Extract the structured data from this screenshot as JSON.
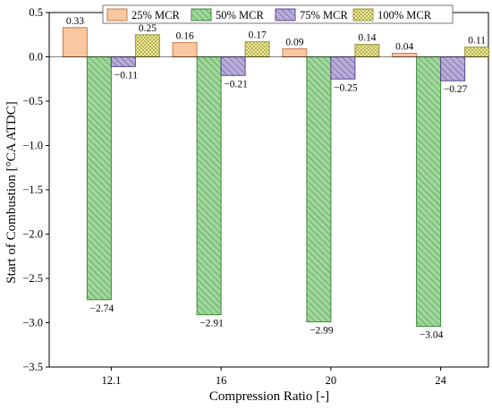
{
  "chart_data": {
    "type": "bar",
    "xlabel": "Compression Ratio [-]",
    "ylabel": "Start of Combustion [°CA ATDC]",
    "ylim": [
      -3.5,
      0.5
    ],
    "yticks": [
      "0.5",
      "0.0",
      "−0.5",
      "−1.0",
      "−1.5",
      "−2.0",
      "−2.5",
      "−3.0",
      "−3.5"
    ],
    "categories": [
      "12.1",
      "16",
      "20",
      "24"
    ],
    "legend_position": "top",
    "grid": false,
    "series": [
      {
        "name": "25% MCR",
        "color": "#f9c8a0",
        "pattern": "solid",
        "values": [
          0.33,
          0.16,
          0.09,
          0.04
        ],
        "labels": [
          "0.33",
          "0.16",
          "0.09",
          "0.04"
        ]
      },
      {
        "name": "50% MCR",
        "color": "#9fd69b",
        "pattern": "hatch",
        "values": [
          -2.74,
          -2.91,
          -2.99,
          -3.04
        ],
        "labels": [
          "−2.74",
          "−2.91",
          "−2.99",
          "−3.04"
        ]
      },
      {
        "name": "75% MCR",
        "color": "#b8acd8",
        "pattern": "hatch",
        "values": [
          -0.11,
          -0.21,
          -0.25,
          -0.27
        ],
        "labels": [
          "−0.11",
          "−0.21",
          "−0.25",
          "−0.27"
        ]
      },
      {
        "name": "100% MCR",
        "color": "#f4f0a6",
        "pattern": "crosshatch",
        "values": [
          0.25,
          0.17,
          0.14,
          0.11
        ],
        "labels": [
          "0.25",
          "0.17",
          "0.14",
          "0.11"
        ]
      }
    ]
  }
}
